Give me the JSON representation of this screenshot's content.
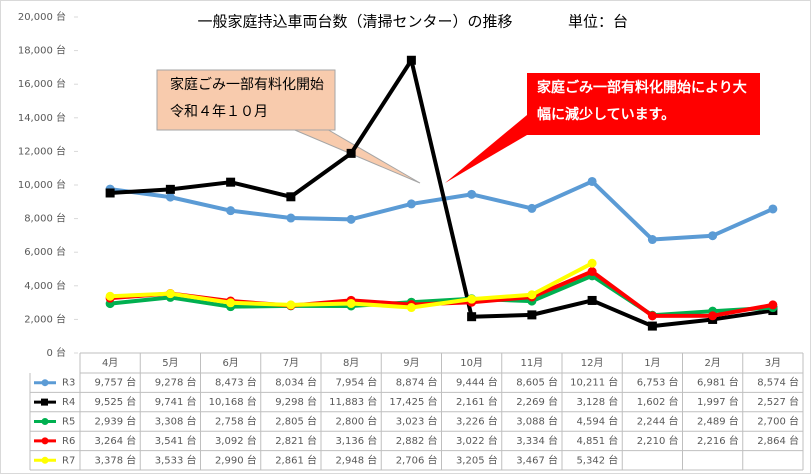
{
  "chart_data": {
    "type": "line",
    "title": "一般家庭持込車両台数（清掃センター）の推移",
    "unit": "単位：台",
    "categories": [
      "4月",
      "5月",
      "6月",
      "7月",
      "8月",
      "9月",
      "10月",
      "11月",
      "12月",
      "1月",
      "2月",
      "3月"
    ],
    "ylim": [
      0,
      20000
    ],
    "yticks": [
      {
        "value": 0,
        "label": "0 台"
      },
      {
        "value": 2000,
        "label": "2,000 台"
      },
      {
        "value": 4000,
        "label": "4,000 台"
      },
      {
        "value": 6000,
        "label": "6,000 台"
      },
      {
        "value": 8000,
        "label": "8,000 台"
      },
      {
        "value": 10000,
        "label": "10,000 台"
      },
      {
        "value": 12000,
        "label": "12,000 台"
      },
      {
        "value": 14000,
        "label": "14,000 台"
      },
      {
        "value": 16000,
        "label": "16,000 台"
      },
      {
        "value": 18000,
        "label": "18,000 台"
      },
      {
        "value": 20000,
        "label": "20,000 台"
      }
    ],
    "grid": false,
    "annotations": [
      {
        "lines": [
          "家庭ごみ一部有料化開始",
          "令和４年１０月"
        ],
        "fill": "#f8cbad",
        "text_color": "#000000"
      },
      {
        "lines": [
          "家庭ごみ一部有料化開始により大",
          "幅に減少しています。"
        ],
        "fill": "#ff0000",
        "text_color": "#ffffff"
      }
    ],
    "series": [
      {
        "name": "R3",
        "color": "#5b9bd5",
        "marker": "circle",
        "values": [
          9757,
          9278,
          8473,
          8034,
          7954,
          8874,
          9444,
          8605,
          10211,
          6753,
          6981,
          8574
        ],
        "value_labels": [
          "9,757 台",
          "9,278 台",
          "8,473 台",
          "8,034 台",
          "7,954 台",
          "8,874 台",
          "9,444 台",
          "8,605 台",
          "10,211 台",
          "6,753 台",
          "6,981 台",
          "8,574 台"
        ]
      },
      {
        "name": "R4",
        "color": "#000000",
        "marker": "square",
        "values": [
          9525,
          9741,
          10168,
          9298,
          11883,
          17425,
          2161,
          2269,
          3128,
          1602,
          1997,
          2527
        ],
        "value_labels": [
          "9,525 台",
          "9,741 台",
          "10,168 台",
          "9,298 台",
          "11,883 台",
          "17,425 台",
          "2,161 台",
          "2,269 台",
          "3,128 台",
          "1,602 台",
          "1,997 台",
          "2,527 台"
        ]
      },
      {
        "name": "R5",
        "color": "#00b050",
        "marker": "circle",
        "values": [
          2939,
          3308,
          2758,
          2805,
          2800,
          3023,
          3226,
          3088,
          4594,
          2244,
          2489,
          2700
        ],
        "value_labels": [
          "2,939 台",
          "3,308 台",
          "2,758 台",
          "2,805 台",
          "2,800 台",
          "3,023 台",
          "3,226 台",
          "3,088 台",
          "4,594 台",
          "2,244 台",
          "2,489 台",
          "2,700 台"
        ]
      },
      {
        "name": "R6",
        "color": "#ff0000",
        "marker": "circle",
        "values": [
          3264,
          3541,
          3092,
          2821,
          3136,
          2882,
          3022,
          3334,
          4851,
          2210,
          2216,
          2864
        ],
        "value_labels": [
          "3,264 台",
          "3,541 台",
          "3,092 台",
          "2,821 台",
          "3,136 台",
          "2,882 台",
          "3,022 台",
          "3,334 台",
          "4,851 台",
          "2,210 台",
          "2,216 台",
          "2,864 台"
        ]
      },
      {
        "name": "R7",
        "color": "#ffff00",
        "marker": "circle",
        "values": [
          3378,
          3533,
          2990,
          2861,
          2948,
          2706,
          3205,
          3467,
          5342,
          null,
          null,
          null
        ],
        "value_labels": [
          "3,378 台",
          "3,533 台",
          "2,990 台",
          "2,861 台",
          "2,948 台",
          "2,706 台",
          "3,205 台",
          "3,467 台",
          "5,342 台",
          null,
          null,
          null
        ]
      }
    ]
  }
}
